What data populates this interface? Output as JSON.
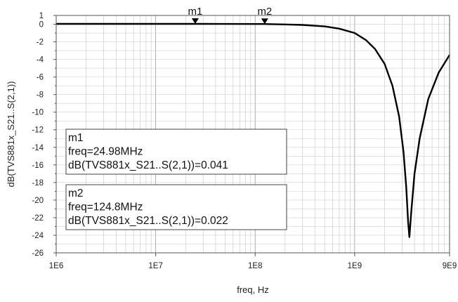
{
  "chart_data": {
    "type": "line",
    "xlabel": "freq, Hz",
    "ylabel": "dB(TVS881x_S21..S(2,1))",
    "xscale": "log",
    "xlim": [
      1000000,
      9000000000
    ],
    "ylim": [
      -26,
      1
    ],
    "x_ticks": [
      {
        "value": 1000000,
        "label": "1E6"
      },
      {
        "value": 10000000,
        "label": "1E7"
      },
      {
        "value": 100000000,
        "label": "1E8"
      },
      {
        "value": 1000000000,
        "label": "1E9"
      },
      {
        "value": 9000000000,
        "label": "9E9"
      }
    ],
    "y_ticks": [
      {
        "value": 1,
        "label": "1"
      },
      {
        "value": 0,
        "label": "0"
      },
      {
        "value": -2,
        "label": "-2"
      },
      {
        "value": -4,
        "label": "-4"
      },
      {
        "value": -6,
        "label": "-6"
      },
      {
        "value": -8,
        "label": "-8"
      },
      {
        "value": -10,
        "label": "-10"
      },
      {
        "value": -12,
        "label": "-12"
      },
      {
        "value": -14,
        "label": "-14"
      },
      {
        "value": -16,
        "label": "-16"
      },
      {
        "value": -18,
        "label": "-18"
      },
      {
        "value": -20,
        "label": "-20"
      },
      {
        "value": -22,
        "label": "-22"
      },
      {
        "value": -24,
        "label": "-24"
      },
      {
        "value": -26,
        "label": "-26"
      }
    ],
    "grid": true,
    "series": [
      {
        "color": "#000000",
        "x": [
          1000000,
          10000000,
          24980000,
          50000000,
          124800000,
          200000000,
          300000000,
          500000000,
          700000000,
          1000000000,
          1300000000,
          1600000000,
          2000000000,
          2400000000,
          2800000000,
          3100000000,
          3300000000,
          3450000000,
          3550000000,
          3700000000,
          4000000000,
          4500000000,
          5500000000,
          7000000000,
          9000000000
        ],
        "y": [
          0.04,
          0.041,
          0.041,
          0.035,
          0.022,
          -0.02,
          -0.08,
          -0.25,
          -0.5,
          -1.0,
          -1.8,
          -2.8,
          -4.5,
          -7.0,
          -10.5,
          -14.5,
          -18.5,
          -22.5,
          -24.2,
          -21.5,
          -17.0,
          -13.0,
          -8.5,
          -5.5,
          -3.5
        ]
      }
    ],
    "markers": [
      {
        "name": "m1",
        "x": 24980000,
        "y": 0.041,
        "freq_text": "freq=24.98MHz",
        "value_text": "dB(TVS881x_S21..S(2,1))=0.041"
      },
      {
        "name": "m2",
        "x": 124800000,
        "y": 0.022,
        "freq_text": "freq=124.8MHz",
        "value_text": "dB(TVS881x_S21..S(2,1))=0.022"
      }
    ]
  }
}
